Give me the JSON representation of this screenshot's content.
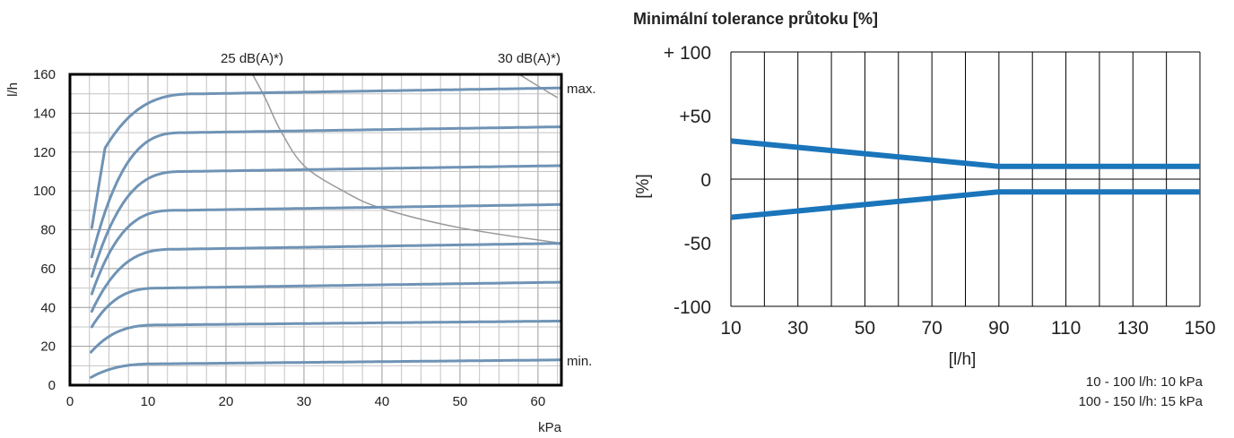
{
  "chart_data": [
    {
      "type": "line",
      "title": "",
      "xlabel": "kPa",
      "ylabel": "l/h",
      "xlim": [
        0,
        63
      ],
      "ylim": [
        0,
        160
      ],
      "x_ticks": [
        "0",
        "10",
        "20",
        "30",
        "40",
        "50",
        "60"
      ],
      "y_ticks": [
        "0",
        "20",
        "40",
        "60",
        "80",
        "100",
        "120",
        "140",
        "160"
      ],
      "grid": true,
      "series_color": "#6f93b5",
      "noise_color": "#9a9a9a",
      "curve_labels": {
        "max": "max.",
        "min": "min."
      },
      "series": [
        {
          "start": [
            2.7,
            4
          ],
          "plateau": 11,
          "knee": 12,
          "end": 13
        },
        {
          "start": [
            2.7,
            17
          ],
          "plateau": 31,
          "knee": 12,
          "end": 33
        },
        {
          "start": [
            2.8,
            30
          ],
          "plateau": 50,
          "knee": 12,
          "end": 53
        },
        {
          "start": [
            2.8,
            38
          ],
          "plateau": 70,
          "knee": 14,
          "end": 73
        },
        {
          "start": [
            2.8,
            47
          ],
          "plateau": 90,
          "knee": 14,
          "end": 93
        },
        {
          "start": [
            2.8,
            56
          ],
          "plateau": 110,
          "knee": 15,
          "end": 113
        },
        {
          "start": [
            2.8,
            66
          ],
          "plateau": 130,
          "knee": 15,
          "end": 133
        },
        {
          "start": [
            2.8,
            81
          ],
          "plateau": 150,
          "knee": 17,
          "end": 153,
          "steep": [
            4.5,
            122
          ]
        }
      ],
      "noise_curves": [
        {
          "label": "25 dB(A)*)",
          "points": [
            [
              23,
              163
            ],
            [
              25,
              148
            ],
            [
              27,
              131
            ],
            [
              30,
              113
            ],
            [
              35,
              100
            ],
            [
              40,
              91
            ],
            [
              50,
              81
            ],
            [
              63,
              73
            ]
          ]
        },
        {
          "label": "30 dB(A)*)",
          "points": [
            [
              56.5,
              163
            ],
            [
              58,
              159
            ],
            [
              60,
              154
            ],
            [
              62.5,
              148
            ]
          ]
        }
      ]
    },
    {
      "type": "line",
      "title": "Minimální tolerance průtoku [%]",
      "xlabel": "[l/h]",
      "ylabel": "[%]",
      "xlim": [
        10,
        150
      ],
      "ylim": [
        -100,
        100
      ],
      "x_ticks": [
        "10",
        "30",
        "50",
        "70",
        "90",
        "110",
        "130",
        "150"
      ],
      "y_ticks": [
        "+ 100",
        "+50",
        "0",
        "-50",
        "-100"
      ],
      "grid": true,
      "series_color": "#1a75bb",
      "series": [
        {
          "x": [
            10,
            90,
            150
          ],
          "y": [
            30,
            10,
            10
          ]
        },
        {
          "x": [
            10,
            90,
            150
          ],
          "y": [
            -30,
            -10,
            -10
          ]
        }
      ],
      "notes": [
        "10 - 100 l/h: 10 kPa",
        "100 - 150 l/h: 15 kPa"
      ]
    }
  ]
}
